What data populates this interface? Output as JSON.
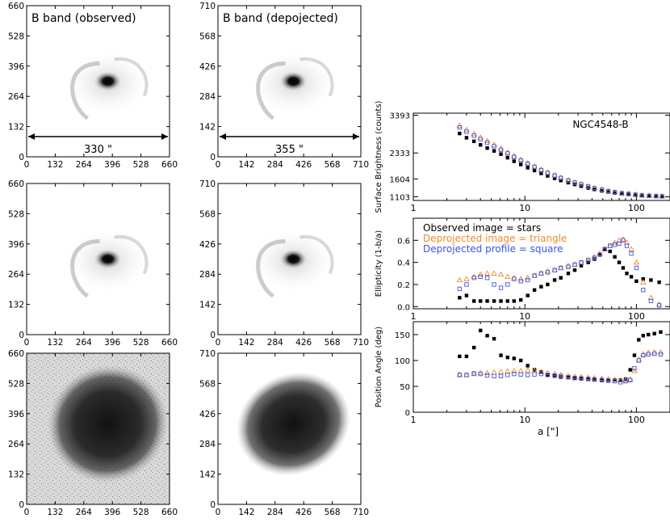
{
  "colors": {
    "observed": "#000000",
    "deprojected_image": "#f08a2c",
    "deprojected_profile": "#3b55e6",
    "contour": "#e23a3a"
  },
  "panels": {
    "obs_axis_ticks": [
      "0",
      "132",
      "264",
      "396",
      "528",
      "660"
    ],
    "dep_axis_ticks": [
      "0",
      "142",
      "284",
      "426",
      "568",
      "710"
    ],
    "obs_title": "B band (observed)",
    "dep_title": "B band (depojected)",
    "obs_scale": "330 \"",
    "dep_scale": "355 \""
  },
  "chart_data": [
    {
      "type": "scatter",
      "id": "sb",
      "label": "NGC4548-B",
      "ylabel": "Surface Brightness (counts)",
      "xscale": "log",
      "xlim": [
        1,
        200
      ],
      "xticks": [
        1,
        10,
        100
      ],
      "xtick_labels": [
        "1",
        "10",
        "100"
      ],
      "ylim": [
        1000,
        3450
      ],
      "yticks": [
        1103,
        1604,
        2333,
        3393
      ],
      "ytick_labels": [
        "1103",
        "1604",
        "2333",
        "3393"
      ],
      "series": [
        {
          "name": "Observed image",
          "marker": "star",
          "x": [
            2.6,
            3.0,
            3.5,
            4.0,
            4.6,
            5.3,
            6.1,
            7.0,
            8.0,
            9.2,
            10.6,
            12.2,
            14,
            16,
            18.5,
            21,
            24.5,
            28,
            32,
            37,
            42,
            49,
            56,
            64,
            74,
            85,
            98,
            112,
            130,
            150,
            170
          ],
          "y": [
            2880,
            2760,
            2660,
            2560,
            2470,
            2390,
            2300,
            2200,
            2100,
            2010,
            1920,
            1840,
            1760,
            1690,
            1620,
            1560,
            1500,
            1450,
            1400,
            1350,
            1310,
            1270,
            1240,
            1210,
            1190,
            1170,
            1150,
            1140,
            1130,
            1120,
            1115
          ]
        },
        {
          "name": "Deprojected image",
          "marker": "triangle",
          "x": [
            2.6,
            3.0,
            3.5,
            4.0,
            4.6,
            5.3,
            6.1,
            7.0,
            8.0,
            9.2,
            10.6,
            12.2,
            14,
            16,
            18.5,
            21,
            24.5,
            28,
            32,
            37,
            42,
            49,
            56,
            64,
            74,
            85,
            98,
            112,
            130,
            150,
            170
          ],
          "y": [
            3100,
            2980,
            2870,
            2770,
            2670,
            2560,
            2460,
            2350,
            2250,
            2150,
            2050,
            1960,
            1870,
            1790,
            1710,
            1640,
            1570,
            1510,
            1460,
            1400,
            1350,
            1310,
            1270,
            1240,
            1210,
            1190,
            1170,
            1150,
            1140,
            1130,
            1120
          ]
        },
        {
          "name": "Deprojected profile",
          "marker": "square",
          "x": [
            2.6,
            3.0,
            3.5,
            4.0,
            4.6,
            5.3,
            6.1,
            7.0,
            8.0,
            9.2,
            10.6,
            12.2,
            14,
            16,
            18.5,
            21,
            24.5,
            28,
            32,
            37,
            42,
            49,
            56,
            64,
            74,
            85,
            98,
            112,
            130,
            150,
            170
          ],
          "y": [
            3050,
            2930,
            2820,
            2720,
            2620,
            2520,
            2420,
            2320,
            2220,
            2120,
            2030,
            1940,
            1850,
            1770,
            1700,
            1630,
            1560,
            1500,
            1450,
            1390,
            1340,
            1300,
            1260,
            1230,
            1200,
            1180,
            1160,
            1140,
            1130,
            1120,
            1115
          ]
        }
      ]
    },
    {
      "type": "scatter",
      "id": "ell",
      "ylabel": "Ellipticity (1-b/a)",
      "xscale": "log",
      "xlim": [
        1,
        200
      ],
      "xticks": [
        1,
        10,
        100
      ],
      "xtick_labels": [
        "1",
        "10",
        "100"
      ],
      "ylim": [
        -0.02,
        0.8
      ],
      "yticks": [
        0.0,
        0.2,
        0.4,
        0.6
      ],
      "ytick_labels": [
        "0.0",
        "0.2",
        "0.4",
        "0.6"
      ],
      "legend": [
        "Observed image = stars",
        "Deprojected image = triangle",
        "Deprojected profile = square"
      ],
      "series": [
        {
          "name": "Observed image",
          "marker": "star",
          "x": [
            2.6,
            3.0,
            3.5,
            4.0,
            4.6,
            5.3,
            6.1,
            7.0,
            8.0,
            9.2,
            10.6,
            12.2,
            14,
            16,
            18.5,
            21,
            24.5,
            28,
            32,
            37,
            42,
            47,
            52,
            58,
            64,
            70,
            76,
            82,
            90,
            100,
            115,
            135,
            160
          ],
          "y": [
            0.08,
            0.1,
            0.05,
            0.05,
            0.05,
            0.05,
            0.05,
            0.05,
            0.05,
            0.06,
            0.1,
            0.15,
            0.18,
            0.2,
            0.24,
            0.26,
            0.3,
            0.33,
            0.37,
            0.4,
            0.43,
            0.47,
            0.52,
            0.5,
            0.45,
            0.4,
            0.35,
            0.3,
            0.27,
            0.23,
            0.25,
            0.24,
            0.22
          ]
        },
        {
          "name": "Deprojected image",
          "marker": "triangle",
          "x": [
            2.6,
            3.0,
            3.5,
            4.0,
            4.6,
            5.3,
            6.1,
            7.0,
            8.0,
            9.2,
            10.6,
            12.2,
            14,
            16,
            18.5,
            21,
            24.5,
            28,
            32,
            37,
            42,
            47,
            52,
            58,
            64,
            70,
            76,
            82,
            90,
            100,
            115,
            135,
            160
          ],
          "y": [
            0.24,
            0.25,
            0.27,
            0.29,
            0.3,
            0.3,
            0.29,
            0.27,
            0.26,
            0.25,
            0.26,
            0.28,
            0.3,
            0.32,
            0.33,
            0.35,
            0.37,
            0.38,
            0.4,
            0.42,
            0.45,
            0.48,
            0.52,
            0.55,
            0.58,
            0.6,
            0.61,
            0.58,
            0.52,
            0.4,
            0.22,
            0.08,
            0.02
          ]
        },
        {
          "name": "Deprojected profile",
          "marker": "square",
          "x": [
            2.6,
            3.0,
            3.5,
            4.0,
            4.6,
            5.3,
            6.1,
            7.0,
            8.0,
            9.2,
            10.6,
            12.2,
            14,
            16,
            18.5,
            21,
            24.5,
            28,
            32,
            37,
            42,
            47,
            52,
            58,
            64,
            70,
            76,
            82,
            90,
            100,
            115,
            135,
            160
          ],
          "y": [
            0.16,
            0.2,
            0.26,
            0.27,
            0.26,
            0.2,
            0.17,
            0.2,
            0.25,
            0.23,
            0.24,
            0.28,
            0.3,
            0.31,
            0.33,
            0.35,
            0.36,
            0.38,
            0.4,
            0.42,
            0.44,
            0.47,
            0.52,
            0.55,
            0.56,
            0.57,
            0.6,
            0.55,
            0.48,
            0.35,
            0.15,
            0.05,
            0.01
          ]
        }
      ]
    },
    {
      "type": "scatter",
      "id": "pa",
      "ylabel": "Position Angle (deg)",
      "xlabel": "a [\"]",
      "xscale": "log",
      "xlim": [
        1,
        200
      ],
      "xticks": [
        1,
        10,
        100
      ],
      "xtick_labels": [
        "1",
        "10",
        "100"
      ],
      "ylim": [
        0,
        175
      ],
      "yticks": [
        0,
        50,
        100,
        150
      ],
      "ytick_labels": [
        "0",
        "50",
        "100",
        "150"
      ],
      "series": [
        {
          "name": "Observed image",
          "marker": "star",
          "x": [
            2.6,
            3.0,
            3.5,
            4.0,
            4.6,
            5.3,
            6.1,
            7.0,
            8.0,
            9.2,
            10.6,
            12.2,
            14,
            16,
            18.5,
            21,
            24.5,
            28,
            32,
            37,
            42,
            49,
            56,
            64,
            72,
            80,
            88,
            96,
            105,
            115,
            128,
            145,
            165
          ],
          "y": [
            108,
            108,
            125,
            158,
            148,
            142,
            110,
            106,
            104,
            100,
            90,
            82,
            78,
            72,
            70,
            68,
            67,
            66,
            66,
            65,
            64,
            63,
            62,
            62,
            62,
            64,
            82,
            110,
            140,
            148,
            150,
            152,
            155
          ]
        },
        {
          "name": "Deprojected image",
          "marker": "triangle",
          "x": [
            2.6,
            3.0,
            3.5,
            4.0,
            4.6,
            5.3,
            6.1,
            7.0,
            8.0,
            9.2,
            10.6,
            12.2,
            14,
            16,
            18.5,
            21,
            24.5,
            28,
            32,
            37,
            42,
            49,
            56,
            64,
            72,
            80,
            88,
            96,
            105,
            115,
            128,
            145,
            165
          ],
          "y": [
            73,
            72,
            74,
            76,
            76,
            77,
            78,
            79,
            80,
            80,
            81,
            80,
            78,
            76,
            74,
            72,
            70,
            69,
            68,
            67,
            66,
            65,
            64,
            63,
            62,
            62,
            64,
            80,
            102,
            112,
            115,
            116,
            116
          ]
        },
        {
          "name": "Deprojected profile",
          "marker": "square",
          "x": [
            2.6,
            3.0,
            3.5,
            4.0,
            4.6,
            5.3,
            6.1,
            7.0,
            8.0,
            9.2,
            10.6,
            12.2,
            14,
            16,
            18.5,
            21,
            24.5,
            28,
            32,
            37,
            42,
            49,
            56,
            64,
            72,
            80,
            88,
            96,
            105,
            115,
            128,
            145,
            165
          ],
          "y": [
            72,
            72,
            75,
            74,
            71,
            70,
            70,
            72,
            74,
            73,
            72,
            73,
            74,
            72,
            71,
            70,
            68,
            66,
            65,
            64,
            63,
            62,
            61,
            60,
            58,
            60,
            62,
            85,
            100,
            110,
            112,
            113,
            112
          ]
        }
      ]
    }
  ]
}
